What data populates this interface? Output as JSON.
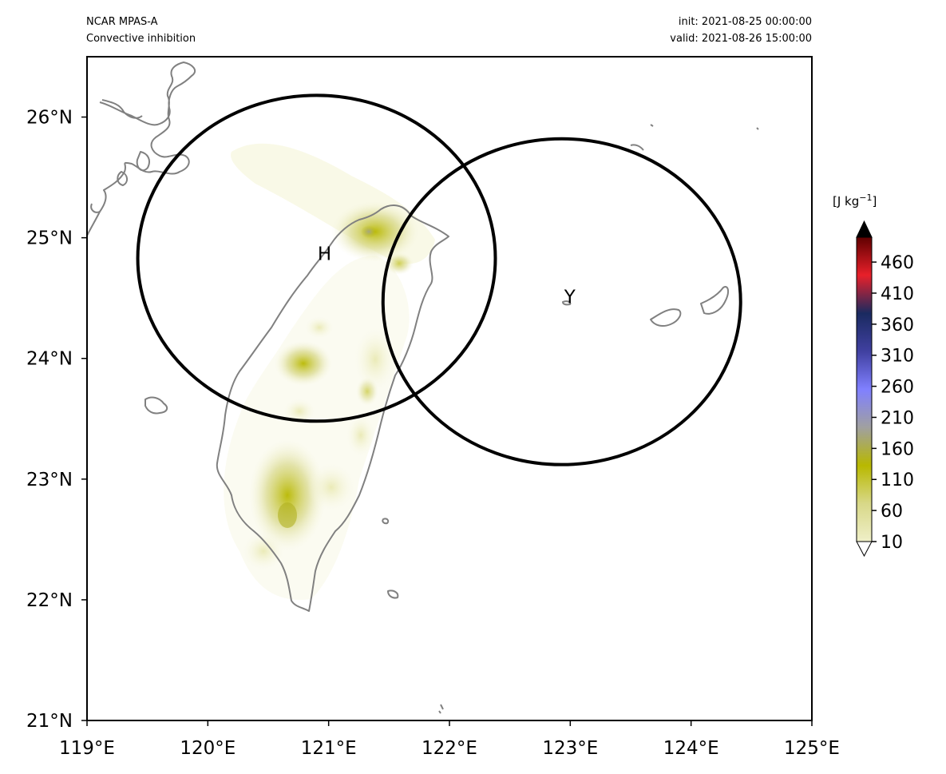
{
  "header": {
    "model": "NCAR MPAS-A",
    "field": "Convective inhibition",
    "init": "init: 2021-08-25 00:00:00",
    "valid": "valid: 2021-08-26 15:00:00"
  },
  "map": {
    "lon_range": [
      119,
      125
    ],
    "lat_range": [
      21,
      26.5
    ],
    "x_ticks": [
      "119°E",
      "120°E",
      "121°E",
      "122°E",
      "123°E",
      "124°E",
      "125°E"
    ],
    "y_ticks": [
      "21°N",
      "22°N",
      "23°N",
      "24°N",
      "25°N",
      "26°N"
    ],
    "coastline_color": "#808080",
    "circles": [
      {
        "label": "H",
        "center_lon": 120.9,
        "center_lat": 24.83,
        "radius_deg_lon": 1.48,
        "radius_deg_lat": 1.35
      },
      {
        "label": "Y",
        "center_lon": 122.93,
        "center_lat": 24.47,
        "radius_deg_lon": 1.48,
        "radius_deg_lat": 1.35
      }
    ]
  },
  "colorbar": {
    "units": "[J kg",
    "units_sup": "−1",
    "units_close": "]",
    "tick_labels": [
      "10",
      "60",
      "110",
      "160",
      "210",
      "260",
      "310",
      "360",
      "410",
      "460"
    ],
    "extend": "both",
    "colors": [
      "#ffffff",
      "#efefc8",
      "#d8d888",
      "#b8b800",
      "#a0a0a0",
      "#8080ff",
      "#4040a0",
      "#1a2a60",
      "#e8202a",
      "#600000",
      "#000000"
    ]
  }
}
